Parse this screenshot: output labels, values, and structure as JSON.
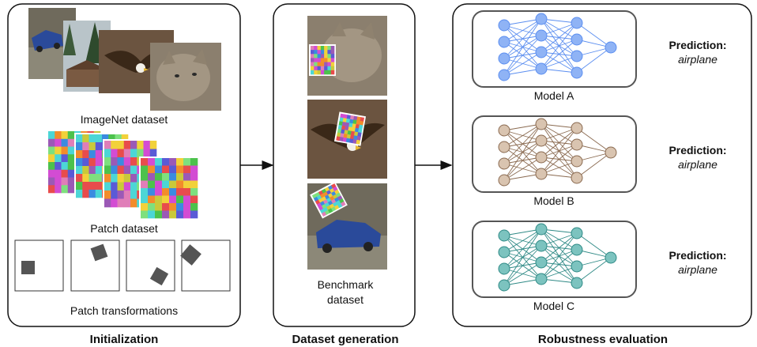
{
  "panels": {
    "initialization": {
      "title": "Initialization",
      "imagenet_label": "ImageNet dataset",
      "patch_label": "Patch dataset",
      "transform_label": "Patch transformations"
    },
    "dataset_generation": {
      "title": "Dataset generation",
      "benchmark_label_line1": "Benchmark",
      "benchmark_label_line2": "dataset"
    },
    "robustness_evaluation": {
      "title": "Robustness evaluation",
      "models": [
        {
          "name": "Model A",
          "prediction_label": "Prediction:",
          "prediction_value": "airplane",
          "color": "#5b8ef0",
          "fill": "#8fb3f5"
        },
        {
          "name": "Model B",
          "prediction_label": "Prediction:",
          "prediction_value": "airplane",
          "color": "#8a6a50",
          "fill": "#d9c4b0"
        },
        {
          "name": "Model C",
          "prediction_label": "Prediction:",
          "prediction_value": "airplane",
          "color": "#2f8a86",
          "fill": "#7cc3bf"
        }
      ]
    }
  },
  "icons": {
    "imagenet_photos": [
      "car-photo-icon",
      "forest-photo-icon",
      "eagle-photo-icon",
      "cat-photo-icon"
    ],
    "benchmark_photos": [
      "cat-patched-photo-icon",
      "eagle-patched-photo-icon",
      "car-patched-photo-icon"
    ]
  },
  "colors": {
    "patch_palette": [
      "#e84c4c",
      "#f2d13a",
      "#4cc24c",
      "#3b8be0",
      "#d34cd3",
      "#4cd6d6",
      "#f28c2b",
      "#9b59b6",
      "#7ee07e",
      "#e07eb8",
      "#c9c93a",
      "#5a5ad6"
    ]
  }
}
